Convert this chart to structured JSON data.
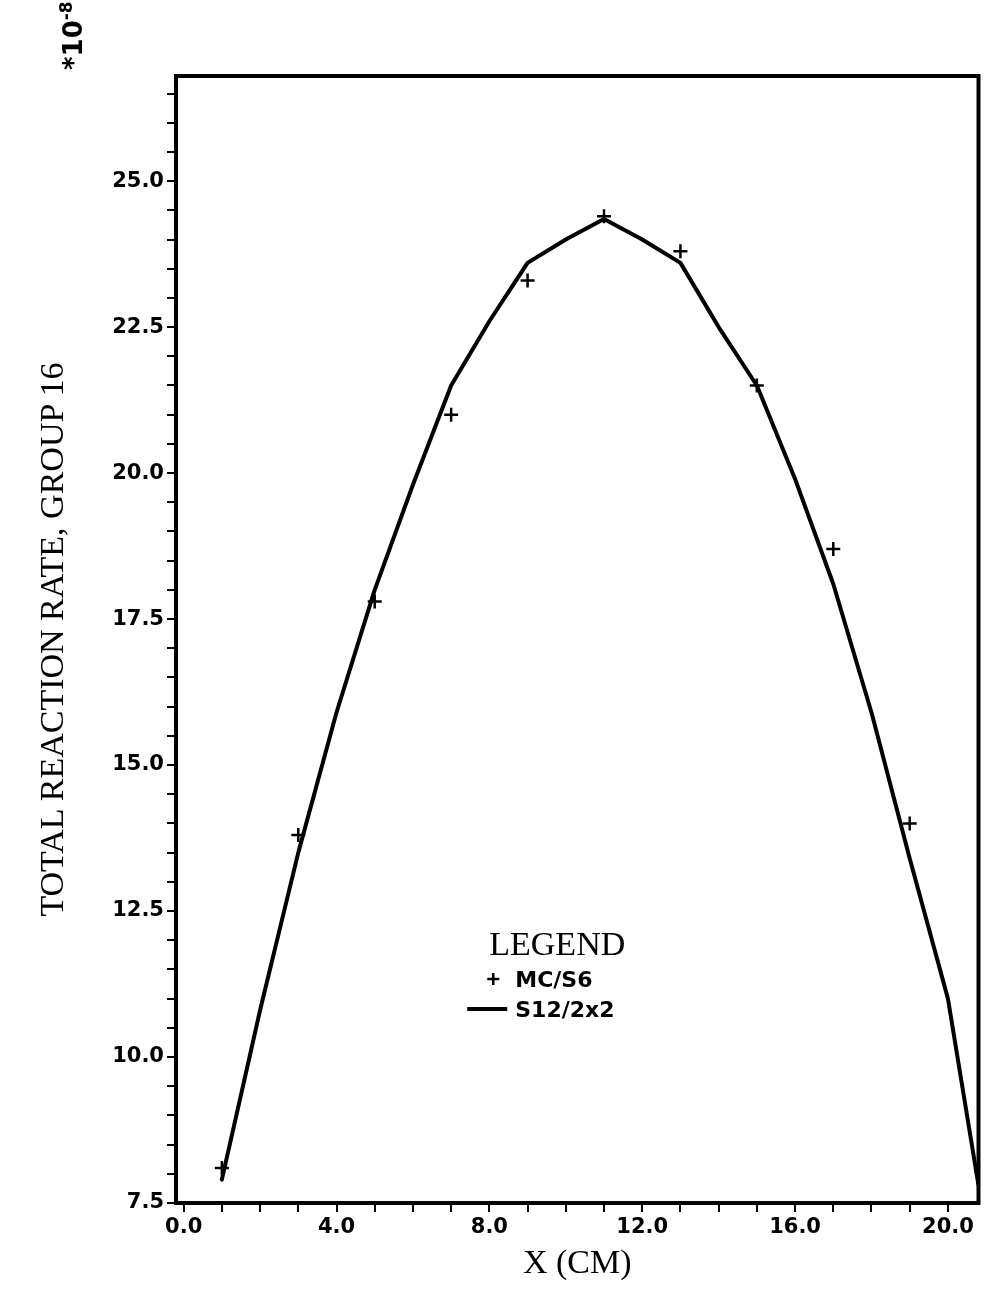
{
  "chart_data": {
    "type": "line",
    "ylabel": "TOTAL REACTION RATE, GROUP 16",
    "xlabel": "X (CM)",
    "legend_title": "LEGEND",
    "annotations": [
      "*10$^{-8}$"
    ],
    "xlim": [
      -0.2,
      20.8
    ],
    "ylim": [
      7.5,
      26.8
    ],
    "xticks": [
      {
        "value": 0,
        "label": "0.0"
      },
      {
        "value": 1,
        "label": null
      },
      {
        "value": 2,
        "label": null
      },
      {
        "value": 3,
        "label": null
      },
      {
        "value": 4,
        "label": "4.0"
      },
      {
        "value": 5,
        "label": null
      },
      {
        "value": 6,
        "label": null
      },
      {
        "value": 7,
        "label": null
      },
      {
        "value": 8,
        "label": "8.0"
      },
      {
        "value": 9,
        "label": null
      },
      {
        "value": 10,
        "label": null
      },
      {
        "value": 11,
        "label": null
      },
      {
        "value": 12,
        "label": "12.0"
      },
      {
        "value": 13,
        "label": null
      },
      {
        "value": 14,
        "label": null
      },
      {
        "value": 15,
        "label": null
      },
      {
        "value": 16,
        "label": "16.0"
      },
      {
        "value": 17,
        "label": null
      },
      {
        "value": 18,
        "label": null
      },
      {
        "value": 19,
        "label": null
      },
      {
        "value": 20,
        "label": "20.0"
      }
    ],
    "yticks": [
      {
        "value": 7.5,
        "label": "7.5"
      },
      {
        "value": 8,
        "label": null
      },
      {
        "value": 8.5,
        "label": null
      },
      {
        "value": 9,
        "label": null
      },
      {
        "value": 9.5,
        "label": null
      },
      {
        "value": 10,
        "label": "10.0"
      },
      {
        "value": 10.5,
        "label": null
      },
      {
        "value": 11,
        "label": null
      },
      {
        "value": 11.5,
        "label": null
      },
      {
        "value": 12,
        "label": null
      },
      {
        "value": 12.5,
        "label": "12.5"
      },
      {
        "value": 13,
        "label": null
      },
      {
        "value": 13.5,
        "label": null
      },
      {
        "value": 14,
        "label": null
      },
      {
        "value": 14.5,
        "label": null
      },
      {
        "value": 15,
        "label": "15.0"
      },
      {
        "value": 15.5,
        "label": null
      },
      {
        "value": 16,
        "label": null
      },
      {
        "value": 16.5,
        "label": null
      },
      {
        "value": 17,
        "label": null
      },
      {
        "value": 17.5,
        "label": "17.5"
      },
      {
        "value": 18,
        "label": null
      },
      {
        "value": 18.5,
        "label": null
      },
      {
        "value": 19,
        "label": null
      },
      {
        "value": 19.5,
        "label": null
      },
      {
        "value": 20,
        "label": "20.0"
      },
      {
        "value": 20.5,
        "label": null
      },
      {
        "value": 21,
        "label": null
      },
      {
        "value": 21.5,
        "label": null
      },
      {
        "value": 22,
        "label": null
      },
      {
        "value": 22.5,
        "label": "22.5"
      },
      {
        "value": 23,
        "label": null
      },
      {
        "value": 23.5,
        "label": null
      },
      {
        "value": 24,
        "label": null
      },
      {
        "value": 24.5,
        "label": null
      },
      {
        "value": 25,
        "label": "25.0"
      },
      {
        "value": 25.5,
        "label": null
      },
      {
        "value": 26,
        "label": null
      },
      {
        "value": 26.5,
        "label": null
      }
    ],
    "grid": false,
    "legend": "bottom",
    "series": [
      {
        "name": "MC/S6",
        "type": "scatter",
        "marker": "cross",
        "color": "#000000",
        "x": [
          1,
          3,
          5,
          7,
          9,
          11,
          13,
          15,
          17,
          19
        ],
        "values": [
          8.1,
          13.8,
          17.8,
          21.0,
          23.3,
          24.4,
          23.8,
          21.5,
          18.7,
          14.0
        ]
      },
      {
        "name": "S12/2x2",
        "marker": "none",
        "line_style": "solid",
        "color": "#000000",
        "x": [
          1,
          2,
          3,
          4,
          5,
          6,
          7,
          8,
          9,
          10,
          11,
          12,
          13,
          14,
          15,
          16,
          17,
          18,
          19,
          20,
          20.8
        ],
        "values": [
          7.9,
          10.8,
          13.5,
          15.9,
          18.0,
          19.8,
          21.5,
          22.6,
          23.6,
          24.0,
          24.35,
          24.0,
          23.6,
          22.5,
          21.5,
          19.9,
          18.1,
          15.9,
          13.4,
          11.0,
          7.8
        ]
      }
    ]
  }
}
